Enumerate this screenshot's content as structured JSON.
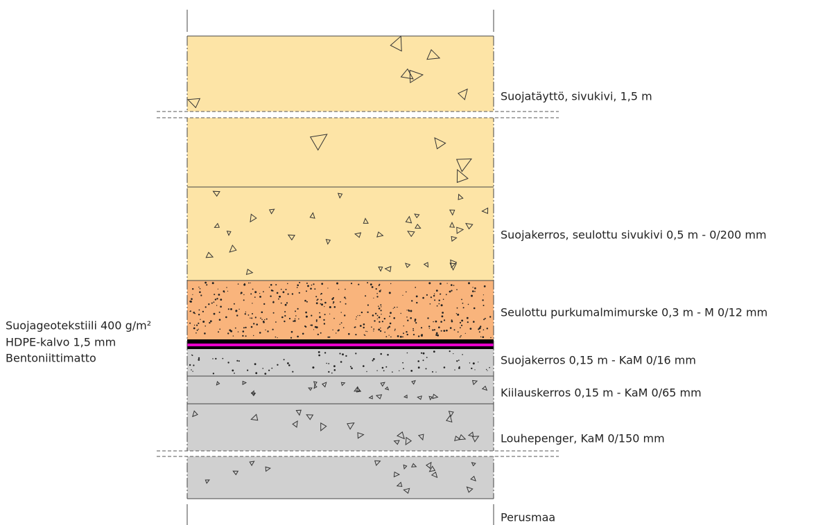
{
  "layers": [
    {
      "label": "Suojatäyttö, sivukivi, 1,5 m"
    },
    {
      "label": "Suojakerros, seulottu sivukivi 0,5 m - 0/200 mm"
    },
    {
      "label": "Seulottu purkumalmimurske 0,3 m - M 0/12 mm"
    },
    {
      "label": "Suojakerros 0,15 m - KaM 0/16 mm"
    },
    {
      "label": "Kiilauskerros 0,15 m - KaM 0/65 mm"
    },
    {
      "label": "Louhepenger, KaM 0/150 mm"
    },
    {
      "label": "Perusmaa"
    }
  ],
  "membranes": [
    "Suojageotekstiili 400 g/m²",
    "HDPE-kalvo 1,5 mm",
    "Bentoniittimatto"
  ]
}
